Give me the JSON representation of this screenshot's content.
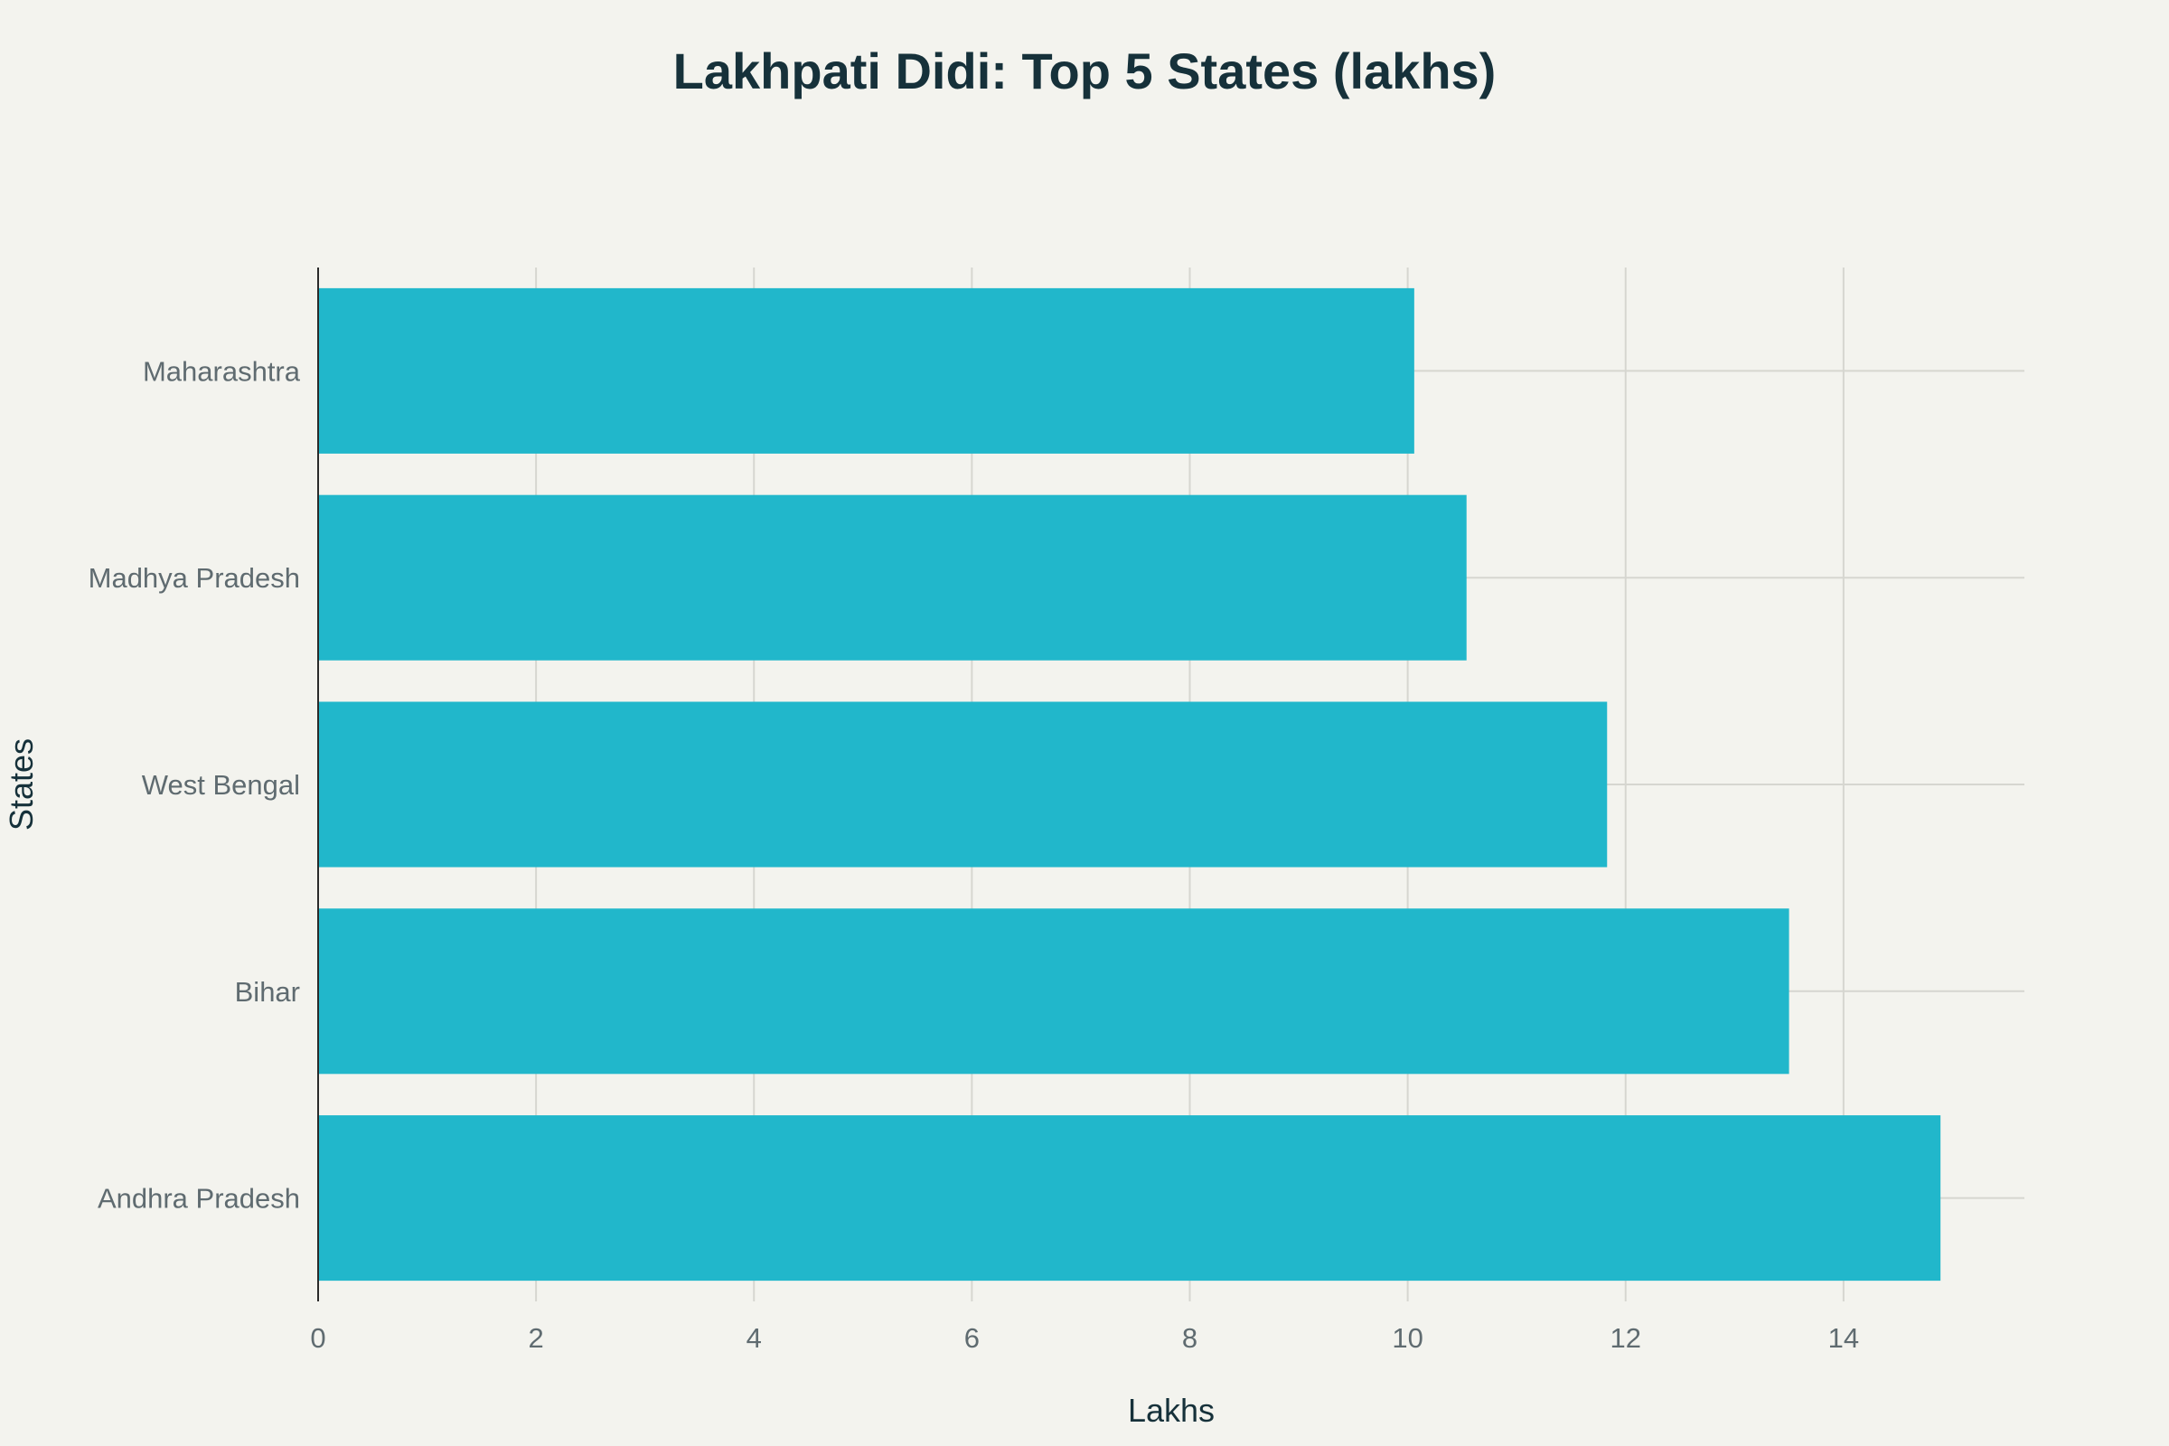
{
  "chart_data": {
    "type": "bar",
    "orientation": "horizontal",
    "title": "Lakhpati Didi: Top 5 States (lakhs)",
    "xlabel": "Lakhs",
    "ylabel": "States",
    "categories": [
      "Andhra Pradesh",
      "Bihar",
      "West Bengal",
      "Madhya Pradesh",
      "Maharashtra"
    ],
    "values": [
      14.89,
      13.5,
      11.83,
      10.54,
      10.06
    ],
    "xlim": [
      0,
      15.66
    ],
    "xticks": [
      0,
      2,
      4,
      6,
      8,
      10,
      12,
      14
    ],
    "grid": true,
    "legend": "none",
    "colors": {
      "bar": "#21b7cb",
      "background": "#f3f3ee",
      "grid": "#d6d6d0",
      "title": "#16313a",
      "tick": "#5f6b70"
    }
  }
}
